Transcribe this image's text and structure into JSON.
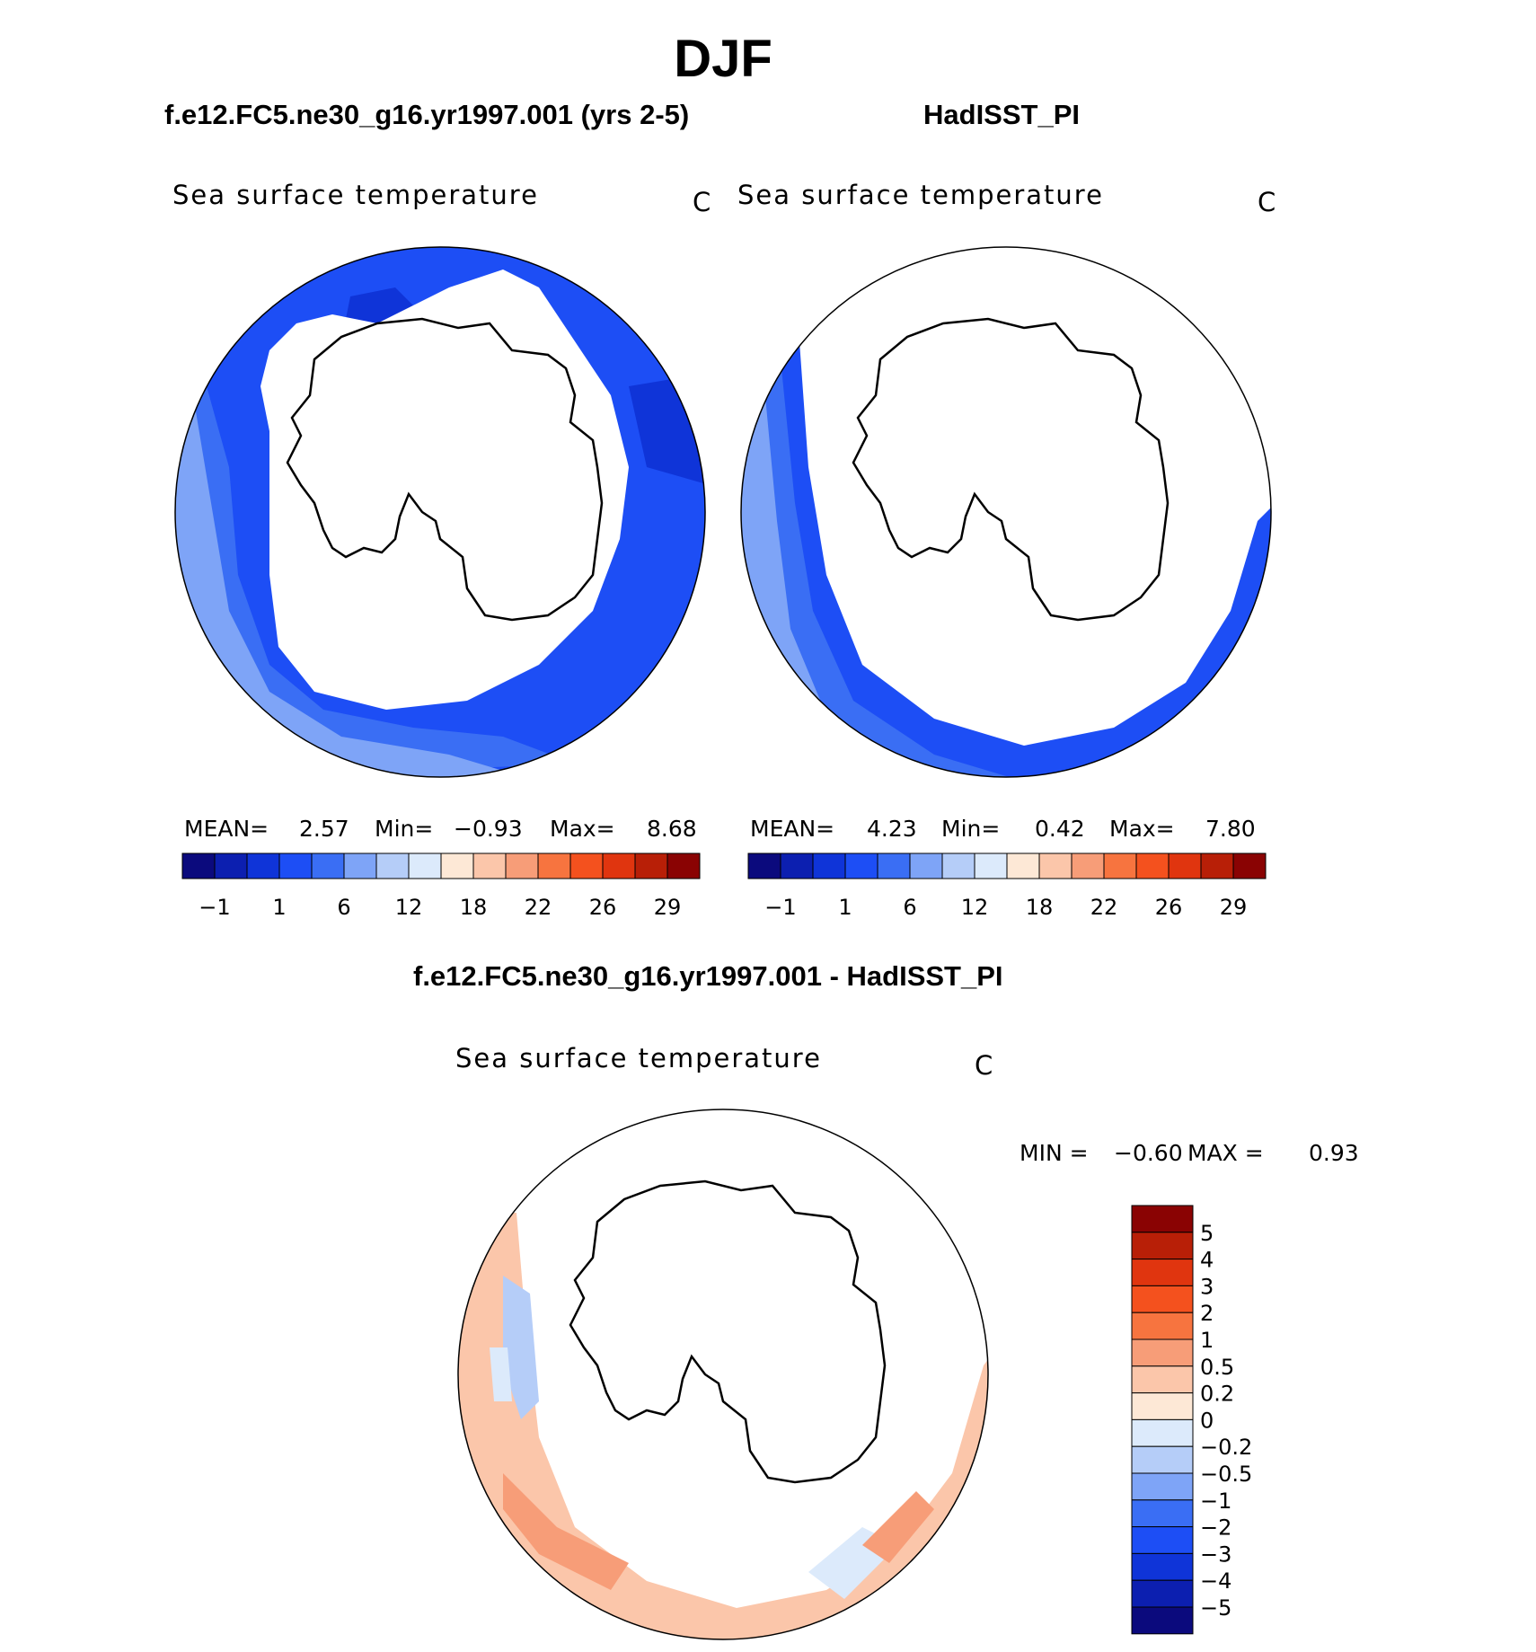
{
  "header": {
    "season": "DJF",
    "left_title": "f.e12.FC5.ne30_g16.yr1997.001 (yrs 2-5)",
    "right_title": "HadISST_PI",
    "diff_title": "f.e12.FC5.ne30_g16.yr1997.001 - HadISST_PI"
  },
  "panels": {
    "left": {
      "variable": "Sea surface temperature",
      "units": "C",
      "stats": {
        "mean_label": "MEAN=",
        "mean": "2.57",
        "min_label": "Min=",
        "min": "−0.93",
        "max_label": "Max=",
        "max": "8.68"
      }
    },
    "right": {
      "variable": "Sea surface temperature",
      "units": "C",
      "stats": {
        "mean_label": "MEAN=",
        "mean": "4.23",
        "min_label": "Min=",
        "min": "0.42",
        "max_label": "Max=",
        "max": "7.80"
      }
    },
    "diff": {
      "variable": "Sea surface temperature",
      "units": "C",
      "stats": {
        "min_label": "MIN =",
        "min": "−0.60",
        "max_label": "MAX =",
        "max": "0.93"
      }
    }
  },
  "colorbar_field": {
    "colors": [
      "#0b0a7d",
      "#0c1fb0",
      "#0f34d8",
      "#1d4ef5",
      "#3a6ef4",
      "#7ea4f7",
      "#b5cdf8",
      "#dceafb",
      "#fde8d6",
      "#fbc6aa",
      "#f79d78",
      "#f7743f",
      "#f4511e",
      "#e0350f",
      "#b81f07",
      "#8a0303"
    ],
    "tick_labels": [
      "−1",
      "1",
      "6",
      "12",
      "18",
      "22",
      "26",
      "29"
    ]
  },
  "colorbar_diff": {
    "colors_top_to_bottom": [
      "#8a0303",
      "#b81f07",
      "#e0350f",
      "#f4511e",
      "#f7743f",
      "#f79d78",
      "#fbc6aa",
      "#fde8d6",
      "#dceafb",
      "#b5cdf8",
      "#7ea4f7",
      "#3a6ef4",
      "#1d4ef5",
      "#0f34d8",
      "#0c1fb0",
      "#0b0a7d"
    ],
    "tick_labels_top_to_bottom": [
      "5",
      "4",
      "3",
      "2",
      "1",
      "0.5",
      "0.2",
      "0",
      "−0.2",
      "−0.5",
      "−1",
      "−2",
      "−3",
      "−4",
      "−5"
    ]
  }
}
